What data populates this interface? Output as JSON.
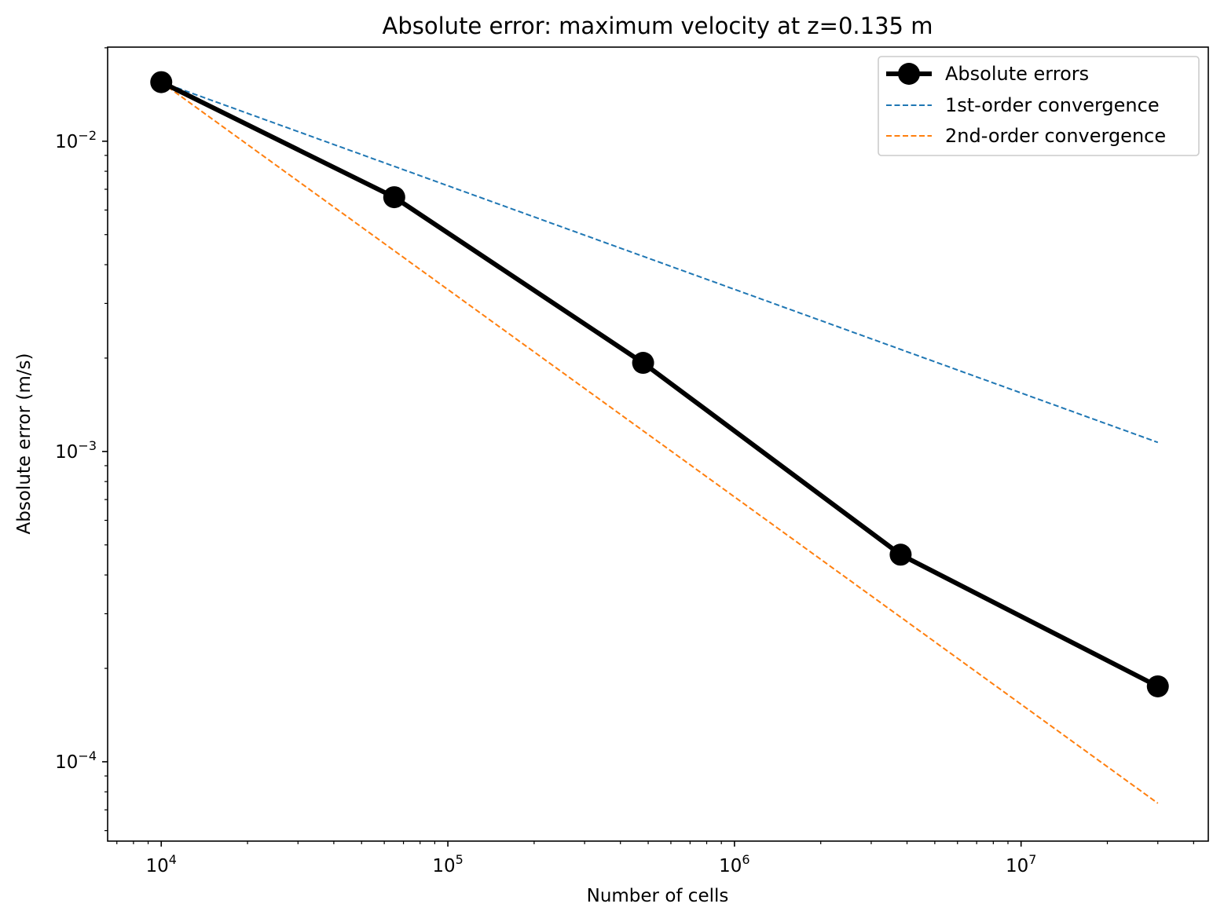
{
  "chart_data": {
    "type": "line",
    "title": "Absolute error: maximum velocity at z=0.135 m",
    "xlabel": "Number of cells",
    "ylabel": "Absolute error (m/s)",
    "xscale": "log",
    "yscale": "log",
    "xlim": [
      6500,
      45000000
    ],
    "ylim": [
      5.55e-05,
      0.0201
    ],
    "grid": false,
    "legend_position": "top-right",
    "xticks": [
      {
        "value": 10000,
        "base": "10",
        "exp": "4"
      },
      {
        "value": 100000,
        "base": "10",
        "exp": "5"
      },
      {
        "value": 1000000,
        "base": "10",
        "exp": "6"
      },
      {
        "value": 10000000,
        "base": "10",
        "exp": "7"
      }
    ],
    "yticks": [
      {
        "value": 0.0001,
        "base": "10",
        "exp": "−4"
      },
      {
        "value": 0.001,
        "base": "10",
        "exp": "−3"
      },
      {
        "value": 0.01,
        "base": "10",
        "exp": "−2"
      }
    ],
    "series": [
      {
        "name": "Absolute errors",
        "color": "#000000",
        "style": "solid",
        "marker": "circle",
        "x": [
          10000,
          65000,
          480000,
          3800000,
          30000000
        ],
        "y": [
          0.0155,
          0.0066,
          0.00193,
          0.000465,
          0.000175
        ]
      },
      {
        "name": "1st-order convergence",
        "color": "#1f77b4",
        "style": "dashed",
        "marker": "none",
        "x": [
          10000,
          30000000
        ],
        "y": [
          0.0155,
          0.00107
        ]
      },
      {
        "name": "2nd-order convergence",
        "color": "#ff7f0e",
        "style": "dashed",
        "marker": "none",
        "x": [
          10000,
          30000000
        ],
        "y": [
          0.0155,
          7.35e-05
        ]
      }
    ]
  }
}
